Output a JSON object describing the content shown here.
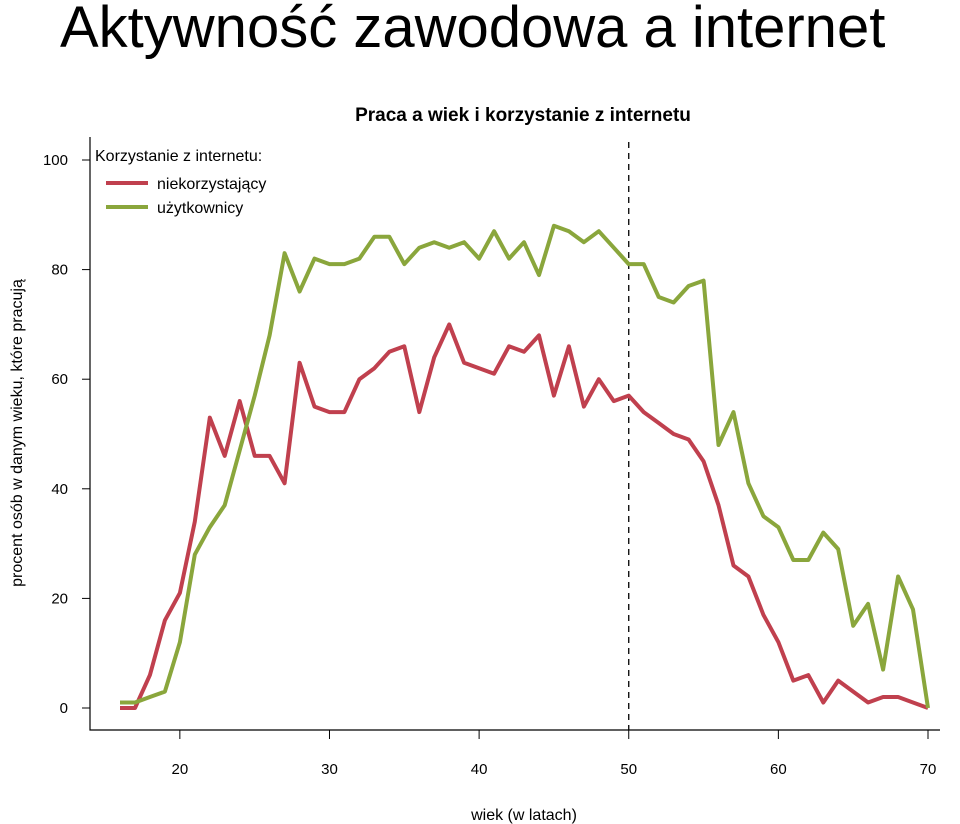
{
  "slide": {
    "title": "Aktywność zawodowa a internet"
  },
  "chart_data": {
    "type": "line",
    "title": "Praca a wiek i korzystanie z internetu",
    "xlabel": "wiek (w latach)",
    "ylabel": "procent osób w danym wieku, które pracują",
    "xlim": [
      16,
      70
    ],
    "ylim": [
      0,
      100
    ],
    "xticks": [
      20,
      30,
      40,
      50,
      60,
      70
    ],
    "yticks": [
      0,
      20,
      40,
      60,
      80,
      100
    ],
    "grid": false,
    "legend": {
      "title": "Korzystanie z internetu:",
      "placement": "top-left"
    },
    "reference_line": {
      "x": 50,
      "style": "dashed"
    },
    "series": [
      {
        "name": "niekorzystający",
        "color": "#c0404e",
        "x": [
          16,
          17,
          18,
          19,
          20,
          21,
          22,
          23,
          24,
          25,
          26,
          27,
          28,
          29,
          30,
          31,
          32,
          33,
          34,
          35,
          36,
          37,
          38,
          39,
          40,
          41,
          42,
          43,
          44,
          45,
          46,
          47,
          48,
          49,
          50,
          51,
          52,
          53,
          54,
          55,
          56,
          57,
          58,
          59,
          60,
          61,
          62,
          63,
          64,
          65,
          66,
          67,
          68,
          69,
          70
        ],
        "values": [
          0,
          0,
          6,
          16,
          21,
          34,
          53,
          46,
          56,
          46,
          46,
          41,
          63,
          55,
          54,
          54,
          60,
          62,
          65,
          66,
          54,
          64,
          70,
          63,
          62,
          61,
          66,
          65,
          68,
          57,
          66,
          55,
          60,
          56,
          57,
          54,
          52,
          50,
          49,
          45,
          37,
          26,
          24,
          17,
          12,
          5,
          6,
          1,
          5,
          3,
          1,
          2,
          2,
          1,
          0
        ]
      },
      {
        "name": "użytkownicy",
        "color": "#8aa63c",
        "x": [
          16,
          17,
          18,
          19,
          20,
          21,
          22,
          23,
          24,
          25,
          26,
          27,
          28,
          29,
          30,
          31,
          32,
          33,
          34,
          35,
          36,
          37,
          38,
          39,
          40,
          41,
          42,
          43,
          44,
          45,
          46,
          47,
          48,
          49,
          50,
          51,
          52,
          53,
          54,
          55,
          56,
          57,
          58,
          59,
          60,
          61,
          62,
          63,
          64,
          65,
          66,
          67,
          68,
          69,
          70
        ],
        "values": [
          1,
          1,
          2,
          3,
          12,
          28,
          33,
          37,
          47,
          57,
          68,
          83,
          76,
          82,
          81,
          81,
          82,
          86,
          86,
          81,
          84,
          85,
          84,
          85,
          82,
          87,
          82,
          85,
          79,
          88,
          87,
          85,
          87,
          84,
          81,
          81,
          75,
          74,
          77,
          78,
          48,
          54,
          41,
          35,
          33,
          27,
          27,
          32,
          29,
          15,
          19,
          7,
          24,
          18,
          0
        ]
      }
    ]
  }
}
